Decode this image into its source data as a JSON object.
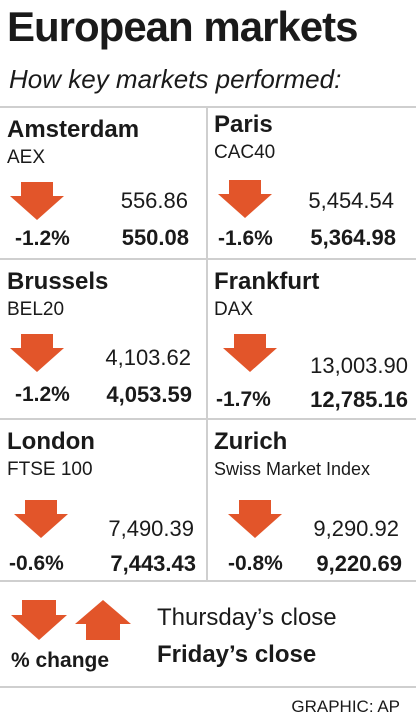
{
  "header": {
    "title": "European markets",
    "subtitle": "How key markets performed:"
  },
  "colors": {
    "arrow": "#e2552a",
    "rule": "#cfcfcf",
    "text": "#1a1a1a"
  },
  "markets": [
    {
      "city": "Amsterdam",
      "index": "AEX",
      "thursday_close": "556.86",
      "change": "-1.2%",
      "friday_close": "550.08",
      "direction": "down"
    },
    {
      "city": "Paris",
      "index": "CAC40",
      "thursday_close": "5,454.54",
      "change": "-1.6%",
      "friday_close": "5,364.98",
      "direction": "down"
    },
    {
      "city": "Brussels",
      "index": "BEL20",
      "thursday_close": "4,103.62",
      "change": "-1.2%",
      "friday_close": "4,053.59",
      "direction": "down"
    },
    {
      "city": "Frankfurt",
      "index": "DAX",
      "thursday_close": "13,003.90",
      "change": "-1.7%",
      "friday_close": "12,785.16",
      "direction": "down"
    },
    {
      "city": "London",
      "index": "FTSE 100",
      "thursday_close": "7,490.39",
      "change": "-0.6%",
      "friday_close": "7,443.43",
      "direction": "down"
    },
    {
      "city": "Zurich",
      "index": "Swiss Market Index",
      "thursday_close": "9,290.92",
      "change": "-0.8%",
      "friday_close": "9,220.69",
      "direction": "down"
    }
  ],
  "legend": {
    "change_label": "% change",
    "thursday_label": "Thursday’s close",
    "friday_label": "Friday’s close",
    "down_icon": "arrow-down-icon",
    "up_icon": "arrow-up-icon"
  },
  "credit": "GRAPHIC: AP"
}
